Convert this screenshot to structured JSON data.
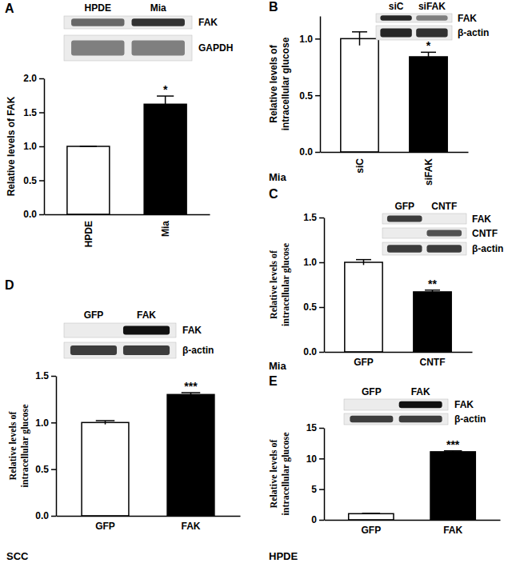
{
  "chart_data": [
    {
      "type": "bar",
      "panel_label": "A",
      "ylabel": "Relative levels of FAK",
      "categories": [
        "HPDE",
        "Mia"
      ],
      "values": [
        1.0,
        1.62
      ],
      "errors": [
        0,
        0.12
      ],
      "colors": [
        "#ffffff",
        "#000000"
      ],
      "significance": "*",
      "ylim": [
        0,
        2.0
      ],
      "yticks": [
        {
          "value": 0,
          "label": "0.0"
        },
        {
          "value": 0.5,
          "label": "0.5"
        },
        {
          "value": 1,
          "label": "1.0"
        },
        {
          "value": 1.5,
          "label": "1.5"
        },
        {
          "value": 2,
          "label": "2.0"
        }
      ],
      "blot": {
        "lanes": [
          "HPDE",
          "Mia"
        ],
        "rows": [
          "FAK",
          "GAPDH"
        ],
        "bands": [
          [
            0.6,
            0.85
          ],
          [
            0.5,
            0.5
          ]
        ]
      }
    },
    {
      "type": "bar",
      "panel_label": "B",
      "cell_line": "Mia",
      "ylabel": [
        "Relative levels of",
        "intracellular glucose"
      ],
      "categories": [
        "siC",
        "siFAK"
      ],
      "values": [
        1.0,
        0.84
      ],
      "errors": [
        0.06,
        0.04
      ],
      "colors": [
        "#ffffff",
        "#000000"
      ],
      "significance": "*",
      "ylim": [
        0,
        1.2
      ],
      "yticks": [
        {
          "value": 0,
          "label": "0.0"
        },
        {
          "value": 0.5,
          "label": "0.5"
        },
        {
          "value": 1,
          "label": "1.0"
        }
      ],
      "blot": {
        "lanes": [
          "siC",
          "siFAK"
        ],
        "rows": [
          "FAK",
          "β-actin"
        ],
        "bands": [
          [
            0.9,
            0.5
          ],
          [
            0.9,
            0.85
          ]
        ]
      }
    },
    {
      "type": "bar",
      "panel_label": "C",
      "cell_line": "Mia",
      "ylabel": [
        "Relative levels of",
        "intracellular glucose"
      ],
      "categories": [
        "GFP",
        "CNTF"
      ],
      "values": [
        1.0,
        0.67
      ],
      "errors": [
        0.03,
        0.02
      ],
      "colors": [
        "#ffffff",
        "#000000"
      ],
      "significance": "**",
      "ylim": [
        0,
        1.5
      ],
      "yticks": [
        {
          "value": 0,
          "label": "0.0"
        },
        {
          "value": 0.5,
          "label": "0.5"
        },
        {
          "value": 1,
          "label": "1.0"
        },
        {
          "value": 1.5,
          "label": "1.5"
        }
      ],
      "blot": {
        "lanes": [
          "GFP",
          "CNTF"
        ],
        "rows": [
          "FAK",
          "CNTF",
          "β-actin"
        ],
        "bands": [
          [
            0.8,
            0
          ],
          [
            0,
            0.7
          ],
          [
            0.8,
            0.8
          ]
        ]
      }
    },
    {
      "type": "bar",
      "panel_label": "D",
      "cell_line": "SCC",
      "ylabel": [
        "Relative levels of",
        "intracellular glucose"
      ],
      "categories": [
        "GFP",
        "FAK"
      ],
      "values": [
        1.0,
        1.3
      ],
      "errors": [
        0.02,
        0.02
      ],
      "colors": [
        "#ffffff",
        "#000000"
      ],
      "significance": "***",
      "ylim": [
        0,
        1.5
      ],
      "yticks": [
        {
          "value": 0,
          "label": "0.0"
        },
        {
          "value": 0.5,
          "label": "0.5"
        },
        {
          "value": 1,
          "label": "1.0"
        },
        {
          "value": 1.5,
          "label": "1.5"
        }
      ],
      "blot": {
        "lanes": [
          "GFP",
          "FAK"
        ],
        "rows": [
          "FAK",
          "β-actin"
        ],
        "bands": [
          [
            0,
            1
          ],
          [
            0.8,
            0.8
          ]
        ]
      }
    },
    {
      "type": "bar",
      "panel_label": "E",
      "cell_line": "HPDE",
      "ylabel": [
        "Relative levels of",
        "intracellular glucose"
      ],
      "categories": [
        "GFP",
        "FAK"
      ],
      "values": [
        1.0,
        11.1
      ],
      "errors": [
        0.05,
        0.15
      ],
      "colors": [
        "#ffffff",
        "#000000"
      ],
      "significance": "***",
      "ylim": [
        0,
        15
      ],
      "yticks": [
        0,
        5,
        10,
        15
      ],
      "blot": {
        "lanes": [
          "GFP",
          "FAK"
        ],
        "rows": [
          "FAK",
          "β-actin"
        ],
        "bands": [
          [
            0,
            1
          ],
          [
            0.8,
            0.8
          ]
        ]
      }
    }
  ]
}
